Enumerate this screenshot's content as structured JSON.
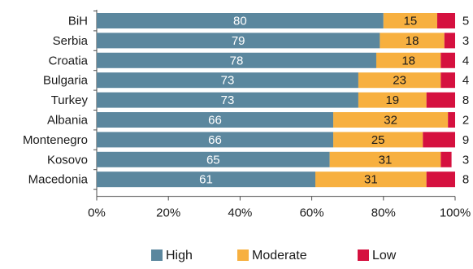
{
  "chart_data": {
    "type": "bar",
    "orientation": "horizontal",
    "stacked": true,
    "categories": [
      "BiH",
      "Serbia",
      "Croatia",
      "Bulgaria",
      "Turkey",
      "Albania",
      "Montenegro",
      "Kosovo",
      "Macedonia"
    ],
    "series": [
      {
        "name": "High",
        "color": "#5b879e",
        "values": [
          80,
          79,
          78,
          73,
          73,
          66,
          66,
          65,
          61
        ]
      },
      {
        "name": "Moderate",
        "color": "#f7b040",
        "values": [
          15,
          18,
          18,
          23,
          19,
          32,
          25,
          31,
          31
        ]
      },
      {
        "name": "Low",
        "color": "#d5113f",
        "values": [
          5,
          3,
          4,
          4,
          8,
          2,
          9,
          3,
          8
        ]
      }
    ],
    "xlim": [
      0,
      100
    ],
    "x_ticks": [
      "0%",
      "20%",
      "40%",
      "60%",
      "80%",
      "100%"
    ],
    "legend_position": "bottom",
    "grid": false
  }
}
